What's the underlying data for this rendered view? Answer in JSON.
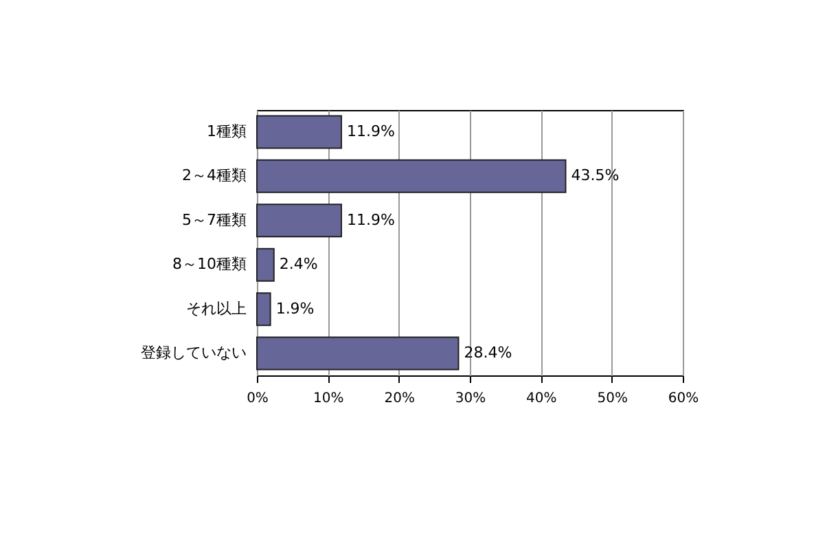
{
  "chart_data": {
    "type": "bar",
    "orientation": "horizontal",
    "categories": [
      "1種類",
      "2～4種類",
      "5～7種類",
      "8～10種類",
      "それ以上",
      "登録していない"
    ],
    "values": [
      11.9,
      43.5,
      11.9,
      2.4,
      1.9,
      28.4
    ],
    "value_labels": [
      "11.9%",
      "43.5%",
      "11.9%",
      "2.4%",
      "1.9%",
      "28.4%"
    ],
    "color": "#666699",
    "xlim": [
      0,
      60
    ],
    "xticks": [
      {
        "value": 0,
        "label": "0%"
      },
      {
        "value": 10,
        "label": "10%"
      },
      {
        "value": 20,
        "label": "20%"
      },
      {
        "value": 30,
        "label": "30%"
      },
      {
        "value": 40,
        "label": "40%"
      },
      {
        "value": 50,
        "label": "50%"
      },
      {
        "value": 60,
        "label": "60%"
      }
    ],
    "grid": "x"
  }
}
